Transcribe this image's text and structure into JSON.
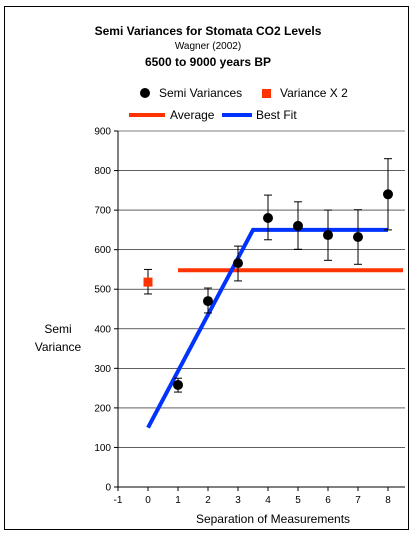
{
  "chart_data": {
    "type": "scatter",
    "title": "Semi Variances for Stomata CO2 Levels",
    "subtitle": "Wagner (2002)",
    "subtitle2": "6500 to 9000 years BP",
    "xlabel": "Separation of Measurements",
    "ylabel_lines": [
      "Semi",
      "Variance"
    ],
    "xlim": [
      -1,
      8.5
    ],
    "ylim": [
      0,
      900
    ],
    "x_ticks": [
      -1,
      0,
      1,
      2,
      3,
      4,
      5,
      6,
      7,
      8
    ],
    "y_ticks": [
      0,
      100,
      200,
      300,
      400,
      500,
      600,
      700,
      800,
      900
    ],
    "grid": "horizontal",
    "legend_position": "top",
    "series": [
      {
        "name": "Semi Variances",
        "kind": "points",
        "marker": "circle",
        "color": "#000000",
        "points": [
          {
            "x": 1,
            "y": 258,
            "err_low": 240,
            "err_high": 275
          },
          {
            "x": 2,
            "y": 470,
            "err_low": 440,
            "err_high": 503
          },
          {
            "x": 3,
            "y": 566,
            "err_low": 521,
            "err_high": 609
          },
          {
            "x": 4,
            "y": 680,
            "err_low": 625,
            "err_high": 738
          },
          {
            "x": 5,
            "y": 660,
            "err_low": 601,
            "err_high": 721
          },
          {
            "x": 6,
            "y": 637,
            "err_low": 573,
            "err_high": 700
          },
          {
            "x": 7,
            "y": 632,
            "err_low": 563,
            "err_high": 701
          },
          {
            "x": 8,
            "y": 740,
            "err_low": 650,
            "err_high": 830
          }
        ]
      },
      {
        "name": "Variance X 2",
        "kind": "points",
        "marker": "square",
        "color": "#ff3300",
        "points": [
          {
            "x": 0,
            "y": 518,
            "err_low": 488,
            "err_high": 550
          }
        ]
      },
      {
        "name": "Average",
        "kind": "line",
        "color": "#ff3300",
        "points": [
          {
            "x": 1,
            "y": 548
          },
          {
            "x": 8.5,
            "y": 548
          }
        ]
      },
      {
        "name": "Best Fit",
        "kind": "line",
        "color": "#0033ff",
        "points": [
          {
            "x": 0,
            "y": 150
          },
          {
            "x": 3.5,
            "y": 650
          },
          {
            "x": 8,
            "y": 650
          }
        ]
      }
    ]
  }
}
